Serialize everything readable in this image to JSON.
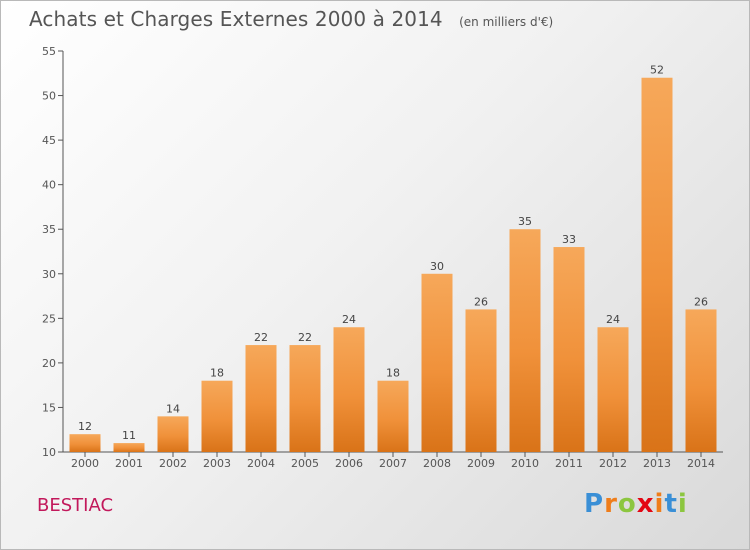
{
  "title": "Achats et Charges Externes 2000 à 2014",
  "unit": "(en milliers d'€)",
  "commune": "BESTIAC",
  "logo": {
    "letters": [
      "P",
      "r",
      "o",
      "x",
      "i",
      "t",
      "i"
    ],
    "colors": [
      "#3a8fd6",
      "#ef7d1a",
      "#8cc63f",
      "#e30613",
      "#ef7d1a",
      "#3a8fd6",
      "#8cc63f"
    ]
  },
  "chart_data": {
    "type": "bar",
    "categories": [
      "2000",
      "2001",
      "2002",
      "2003",
      "2004",
      "2005",
      "2006",
      "2007",
      "2008",
      "2009",
      "2010",
      "2011",
      "2012",
      "2013",
      "2014"
    ],
    "values": [
      12,
      11,
      14,
      18,
      22,
      22,
      24,
      18,
      30,
      26,
      35,
      33,
      24,
      52,
      26
    ],
    "title": "Achats et Charges Externes 2000 à 2014",
    "ylim": [
      10,
      55
    ],
    "yticks": [
      10,
      15,
      20,
      25,
      30,
      35,
      40,
      45,
      50,
      55
    ],
    "grid": false,
    "colors": {
      "bar": "#f0913a",
      "bar_light": "#f6a85a",
      "bar_dark": "#d97318",
      "axis": "#555555"
    }
  }
}
